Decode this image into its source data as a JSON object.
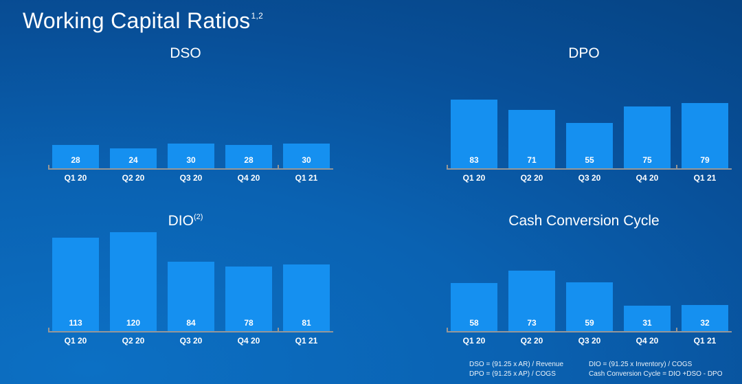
{
  "slide": {
    "title": "Working Capital Ratios",
    "title_superscript": "1,2"
  },
  "colors": {
    "bar": "#1590f0",
    "axis": "#979797",
    "background_light": "#0c70c4",
    "background_dark": "#05417f",
    "text": "#ffffff"
  },
  "footnotes": {
    "col1": [
      "DSO = (91.25 x AR) / Revenue",
      "DPO = (91.25 x AP) / COGS"
    ],
    "col2": [
      "DIO = (91.25 x Inventory) / COGS",
      "Cash Conversion Cycle =  DIO +DSO - DPO"
    ]
  },
  "chart_data": [
    {
      "id": "dso",
      "type": "bar",
      "title": "DSO",
      "title_superscript": "",
      "categories": [
        "Q1 20",
        "Q2 20",
        "Q3 20",
        "Q4 20",
        "Q1 21"
      ],
      "values": [
        28,
        24,
        30,
        28,
        30
      ],
      "value_label_position": "inside-bottom",
      "grid": false,
      "legend": "none"
    },
    {
      "id": "dpo",
      "type": "bar",
      "title": "DPO",
      "title_superscript": "",
      "categories": [
        "Q1 20",
        "Q2 20",
        "Q3 20",
        "Q4 20",
        "Q1 21"
      ],
      "values": [
        83,
        71,
        55,
        75,
        79
      ],
      "value_label_position": "inside-bottom",
      "grid": false,
      "legend": "none"
    },
    {
      "id": "dio",
      "type": "bar",
      "title": "DIO",
      "title_superscript": "(2)",
      "categories": [
        "Q1 20",
        "Q2 20",
        "Q3 20",
        "Q4 20",
        "Q1 21"
      ],
      "values": [
        113,
        120,
        84,
        78,
        81
      ],
      "value_label_position": "inside-bottom",
      "grid": false,
      "legend": "none"
    },
    {
      "id": "ccc",
      "type": "bar",
      "title": "Cash Conversion Cycle",
      "title_superscript": "",
      "categories": [
        "Q1 20",
        "Q2 20",
        "Q3 20",
        "Q4 20",
        "Q1 21"
      ],
      "values": [
        58,
        73,
        59,
        31,
        32
      ],
      "value_label_position": "inside-bottom",
      "grid": false,
      "legend": "none"
    }
  ]
}
